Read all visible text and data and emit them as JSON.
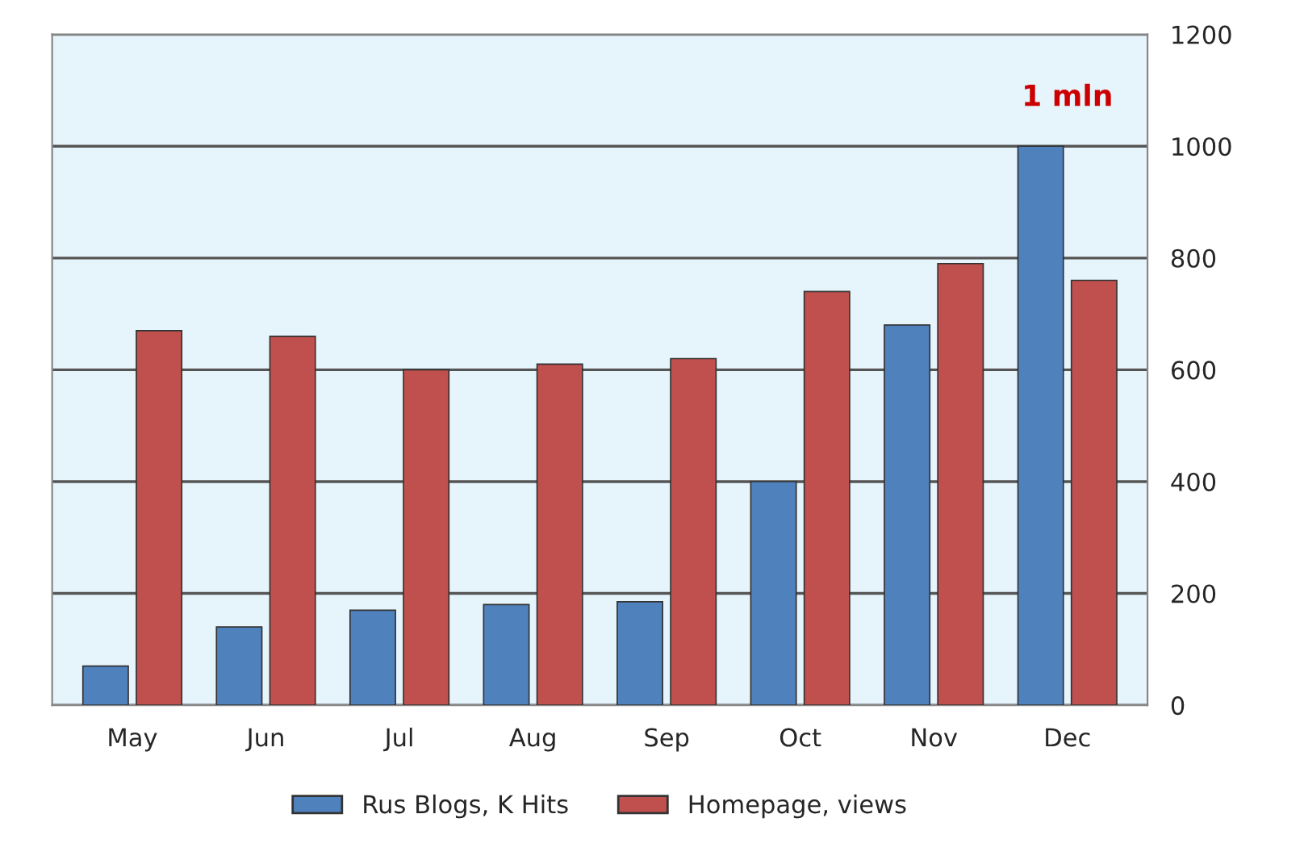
{
  "chart_data": {
    "type": "bar",
    "categories": [
      "May",
      "Jun",
      "Jul",
      "Aug",
      "Sep",
      "Oct",
      "Nov",
      "Dec"
    ],
    "series": [
      {
        "name": "Rus Blogs, K Hits",
        "color": "#4f81bd",
        "values": [
          70,
          140,
          170,
          180,
          185,
          400,
          680,
          1000
        ]
      },
      {
        "name": "Homepage, views",
        "color": "#c0504d",
        "values": [
          670,
          660,
          600,
          610,
          620,
          740,
          790,
          760
        ]
      }
    ],
    "ylim": [
      0,
      1200
    ],
    "yticks": [
      0,
      200,
      400,
      600,
      800,
      1000,
      1200
    ],
    "grid": "y",
    "legend": "bottom",
    "annotations": [
      {
        "text": "1 mln",
        "x": "Dec",
        "y": 1000
      }
    ]
  }
}
